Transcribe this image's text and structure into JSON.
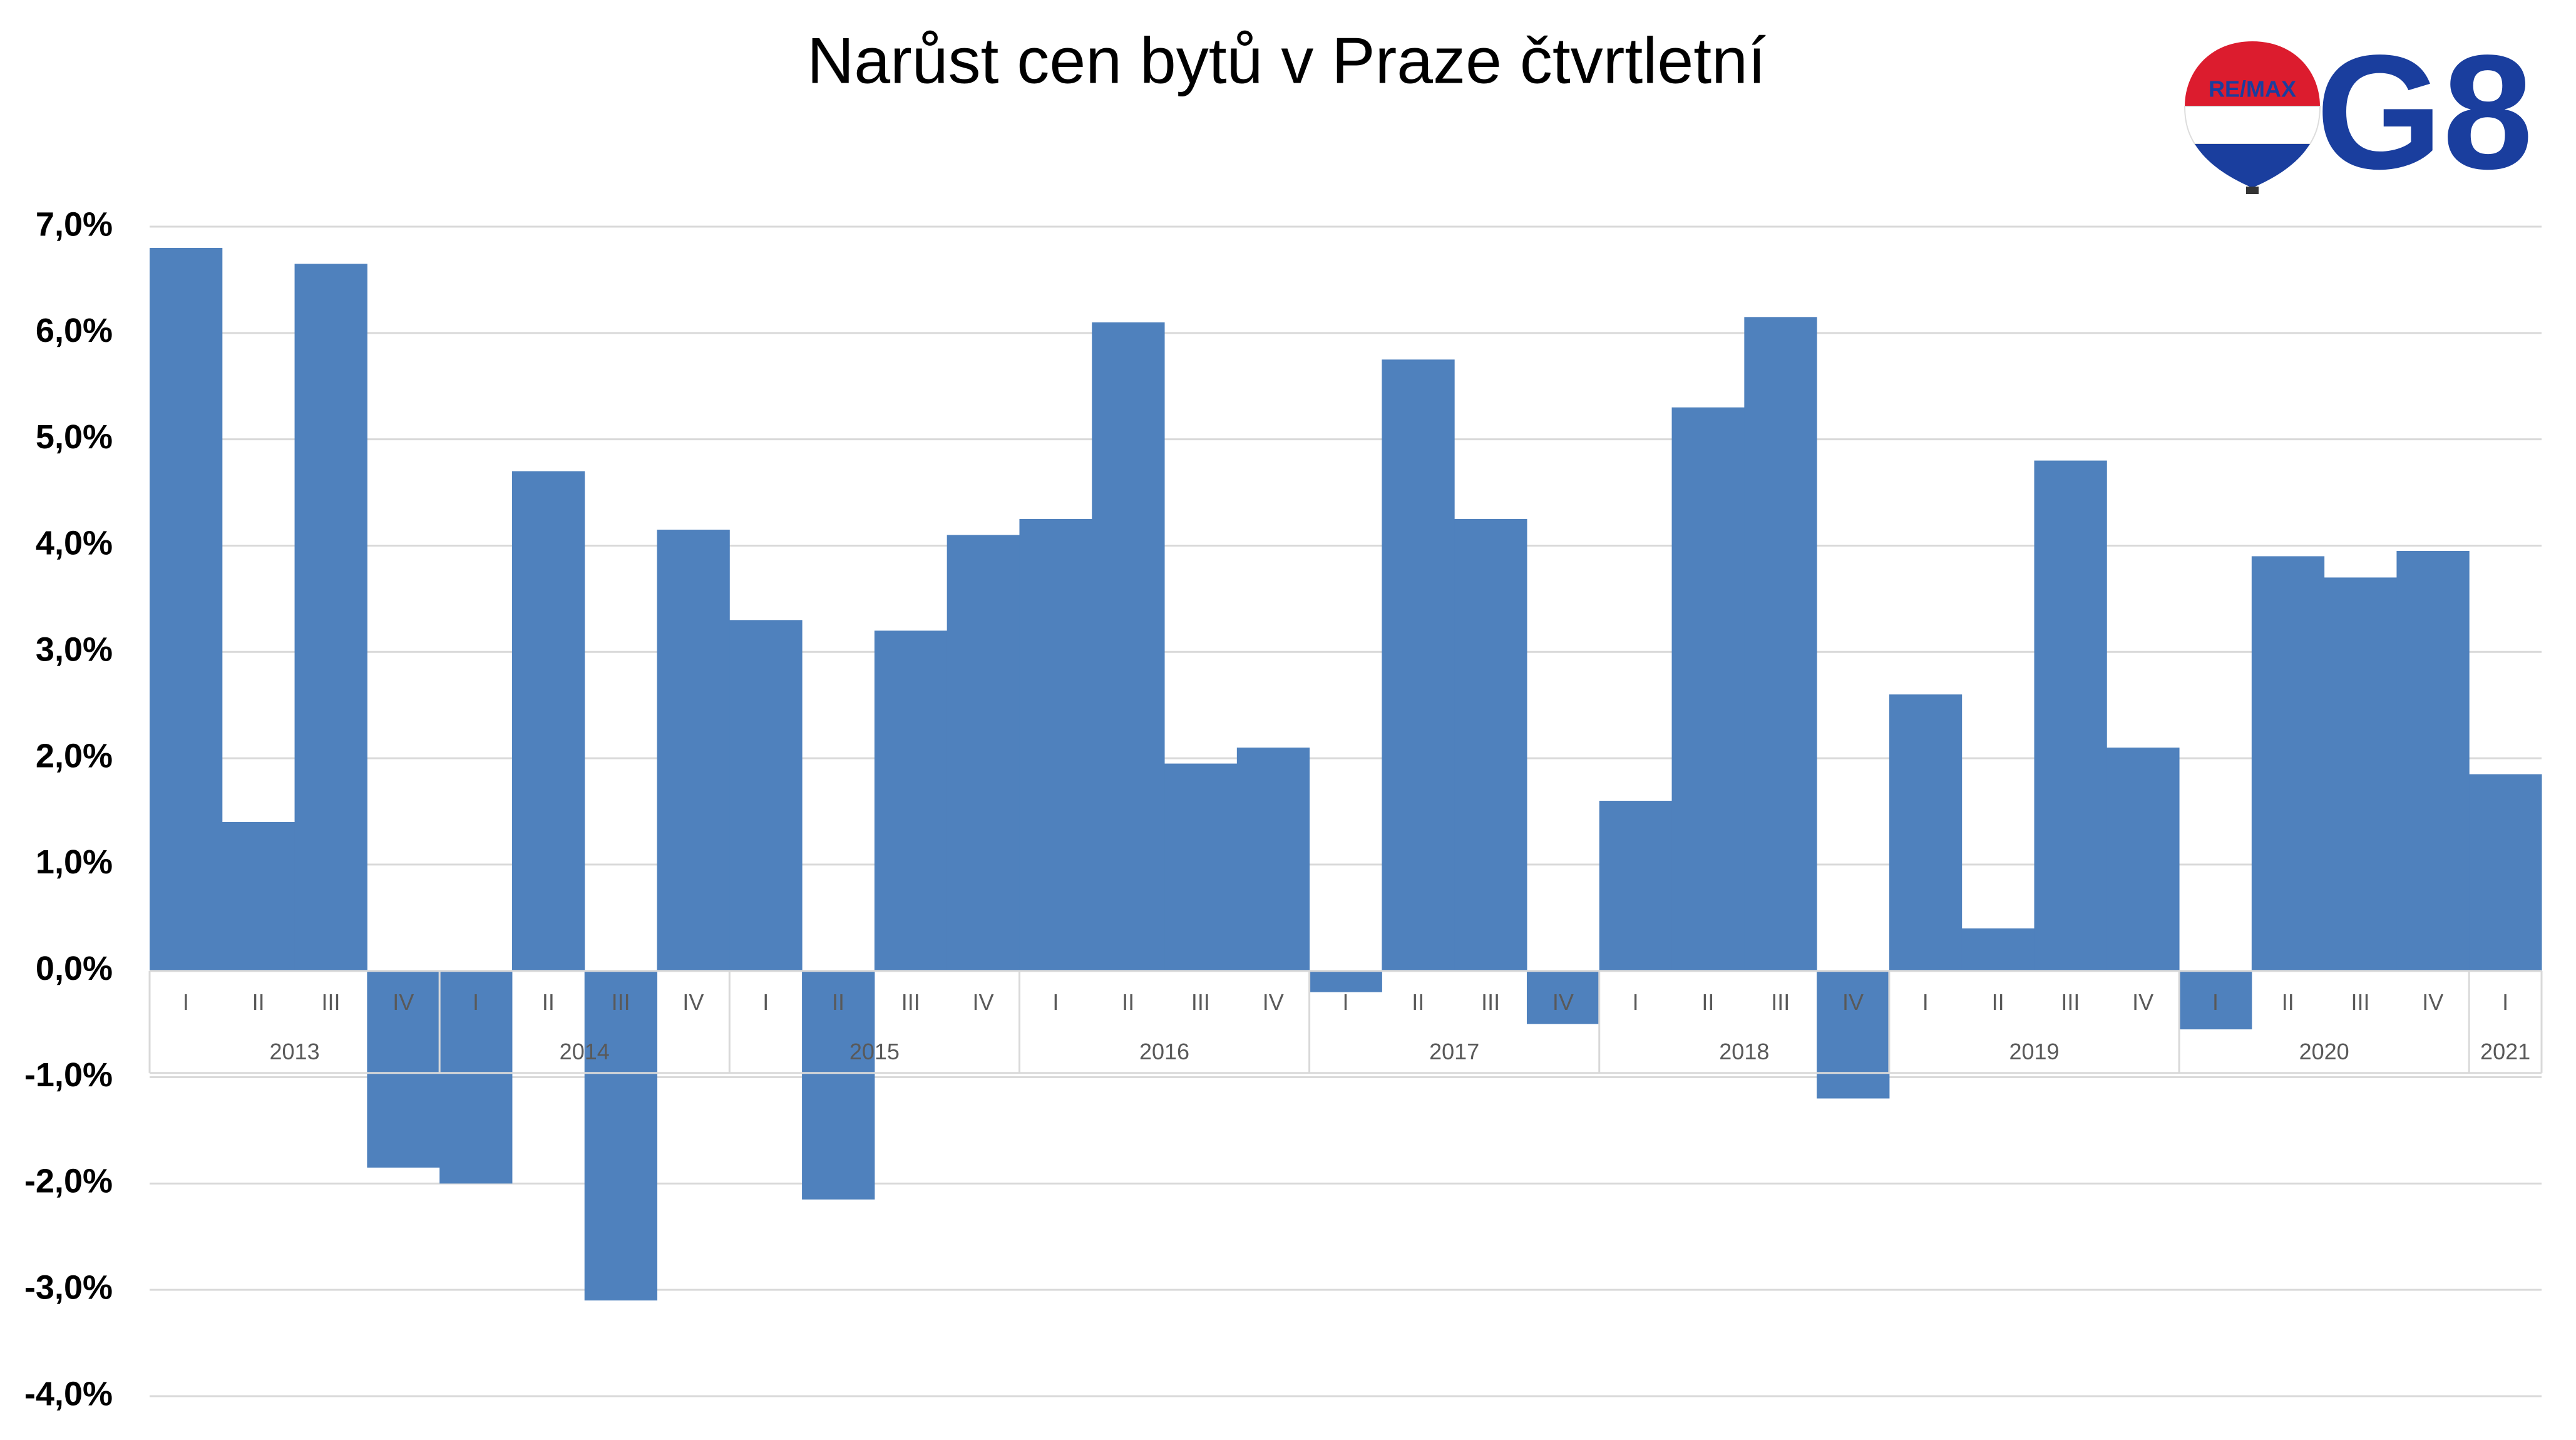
{
  "chart_data": {
    "type": "bar",
    "title": "Narůst cen bytů v Praze čtvrtletní",
    "logo_texts": [
      "RE/MAX",
      "G8"
    ],
    "categories": [
      "I",
      "II",
      "III",
      "IV",
      "I",
      "II",
      "III",
      "IV",
      "I",
      "II",
      "III",
      "IV",
      "I",
      "II",
      "III",
      "IV",
      "I",
      "II",
      "III",
      "IV",
      "I",
      "II",
      "III",
      "IV",
      "I",
      "II",
      "III",
      "IV",
      "I",
      "II",
      "III",
      "IV",
      "I"
    ],
    "year_groups": [
      {
        "name": "2013",
        "size": 4
      },
      {
        "name": "2014",
        "size": 4
      },
      {
        "name": "2015",
        "size": 4
      },
      {
        "name": "2016",
        "size": 4
      },
      {
        "name": "2017",
        "size": 4
      },
      {
        "name": "2018",
        "size": 4
      },
      {
        "name": "2019",
        "size": 4
      },
      {
        "name": "2020",
        "size": 4
      },
      {
        "name": "2021",
        "size": 1
      }
    ],
    "values": [
      6.8,
      1.4,
      6.65,
      -1.85,
      -2.0,
      4.7,
      -3.1,
      4.15,
      3.3,
      -2.15,
      3.2,
      4.1,
      4.25,
      6.1,
      1.95,
      2.1,
      -0.2,
      5.75,
      4.25,
      -0.5,
      1.6,
      5.3,
      6.15,
      -1.2,
      2.6,
      0.4,
      4.8,
      2.1,
      -0.55,
      3.9,
      3.7,
      3.95,
      1.85
    ],
    "color": "#4f81bd",
    "ylim": [
      -4,
      7
    ],
    "yticks": [
      {
        "value": -4,
        "label": "-4,0%"
      },
      {
        "value": -3,
        "label": "-3,0%"
      },
      {
        "value": -2,
        "label": "-2,0%"
      },
      {
        "value": -1,
        "label": "-1,0%"
      },
      {
        "value": 0,
        "label": "0,0%"
      },
      {
        "value": 1,
        "label": "1,0%"
      },
      {
        "value": 2,
        "label": "2,0%"
      },
      {
        "value": 3,
        "label": "3,0%"
      },
      {
        "value": 4,
        "label": "4,0%"
      },
      {
        "value": 5,
        "label": "5,0%"
      },
      {
        "value": 6,
        "label": "6,0%"
      },
      {
        "value": 7,
        "label": "7,0%"
      }
    ],
    "grid": true
  }
}
